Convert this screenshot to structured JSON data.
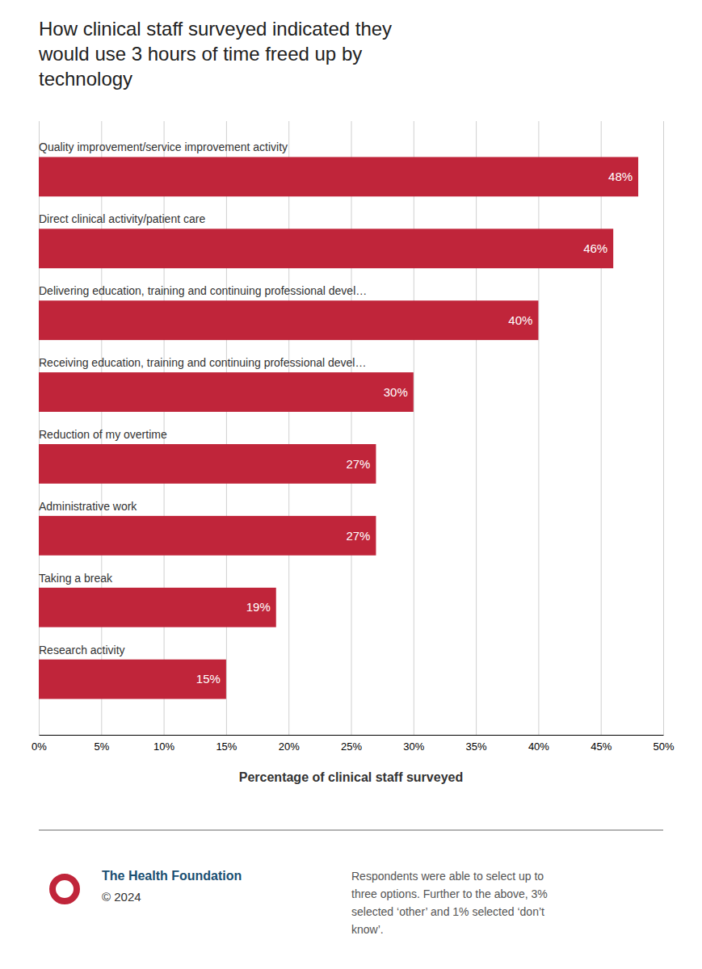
{
  "chart_data": {
    "type": "bar",
    "orientation": "horizontal",
    "title": "How clinical staff surveyed indicated they\nwould use 3 hours of time freed up by\ntechnology",
    "xlabel": "Percentage of clinical staff surveyed",
    "categories": [
      "Quality improvement/service improvement activity",
      "Direct clinical activity/patient care",
      "Delivering education, training and continuing professional devel…",
      "Receiving education, training and continuing professional devel…",
      "Reduction of my overtime",
      "Administrative work",
      "Taking a break",
      "Research activity"
    ],
    "values": [
      48,
      46,
      40,
      30,
      27,
      27,
      19,
      15
    ],
    "value_labels": [
      "48%",
      "46%",
      "40%",
      "30%",
      "27%",
      "27%",
      "19%",
      "15%"
    ],
    "data_labels": true,
    "color": "#c0253a",
    "xlim": [
      0,
      50
    ],
    "xticks": [
      {
        "value": 0,
        "label": "0%"
      },
      {
        "value": 5,
        "label": "5%"
      },
      {
        "value": 10,
        "label": "10%"
      },
      {
        "value": 15,
        "label": "15%"
      },
      {
        "value": 20,
        "label": "20%"
      },
      {
        "value": 25,
        "label": "25%"
      },
      {
        "value": 30,
        "label": "30%"
      },
      {
        "value": 35,
        "label": "35%"
      },
      {
        "value": 40,
        "label": "40%"
      },
      {
        "value": 45,
        "label": "45%"
      },
      {
        "value": 50,
        "label": "50%"
      }
    ],
    "grid": true,
    "annotations": [
      "The Health Foundation",
      "© 2024",
      "Respondents were able to select up to\nthree options. Further to the above, 3%\nselected ‘other’ and 1% selected ‘don’t\nknow’."
    ]
  }
}
